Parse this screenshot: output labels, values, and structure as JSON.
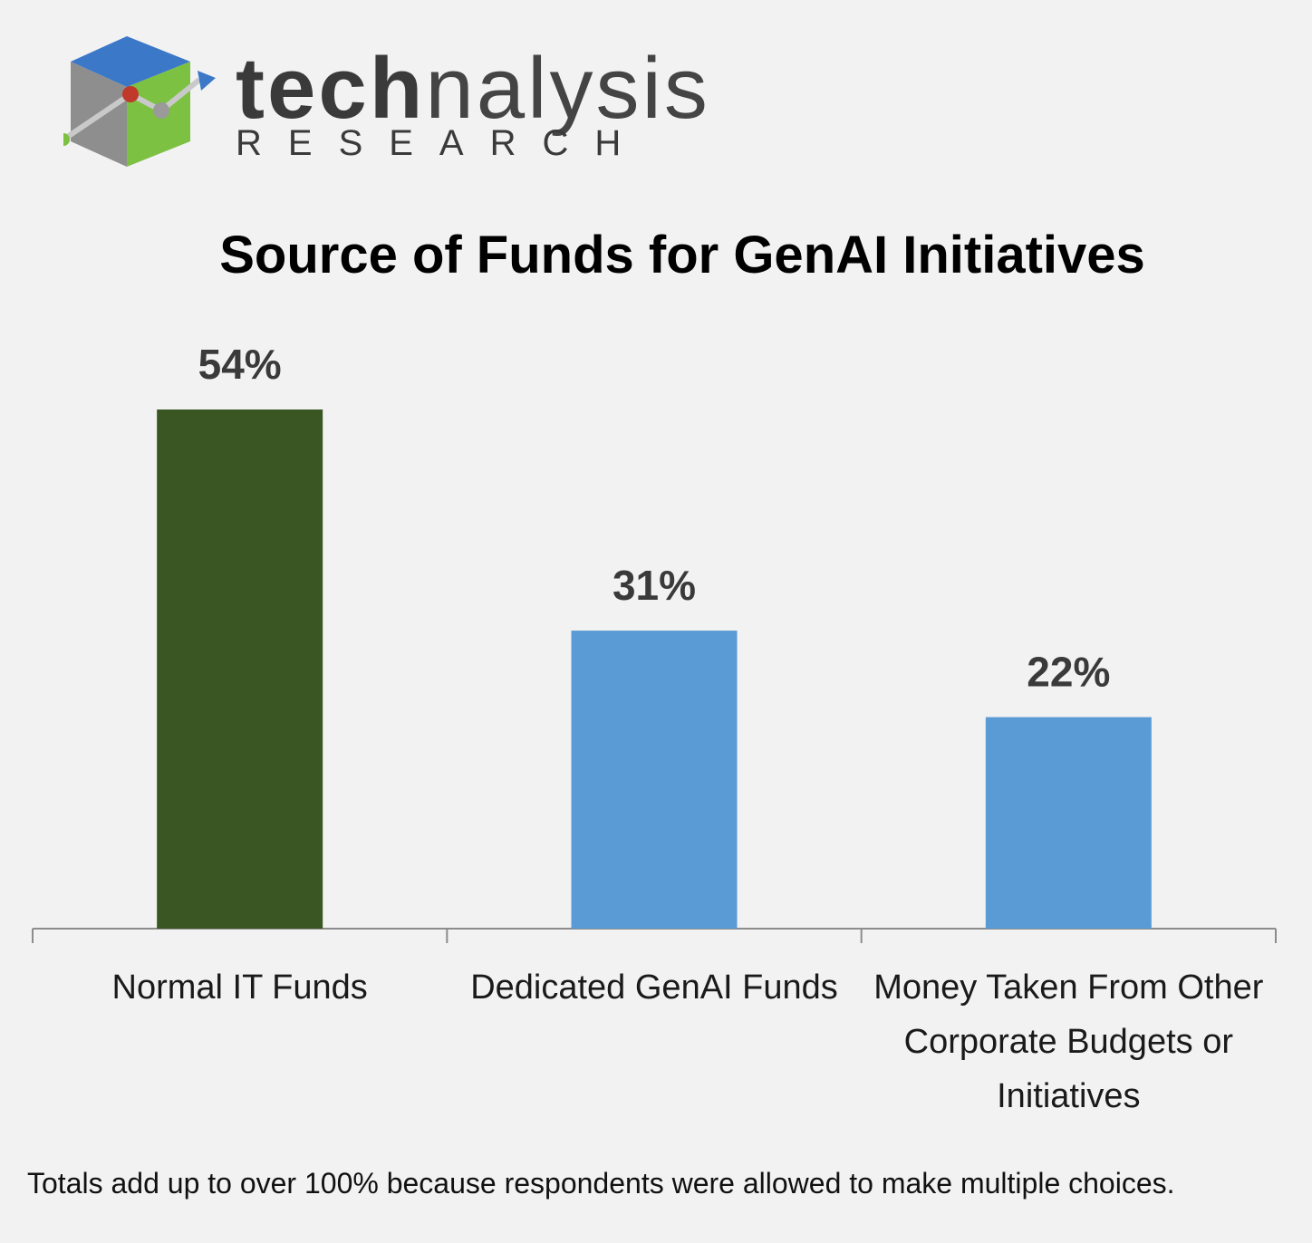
{
  "logo": {
    "word_bold": "tech",
    "word_regular": "nalysis",
    "subtitle": "RESEARCH",
    "icon": "cube-trend-logo-icon"
  },
  "chart_data": {
    "type": "bar",
    "title": "Source of Funds for GenAI Initiatives",
    "xlabel": "",
    "ylabel": "",
    "categories": [
      [
        "Normal IT Funds"
      ],
      [
        "Dedicated GenAI Funds"
      ],
      [
        "Money Taken From Other",
        "Corporate Budgets or",
        "Initiatives"
      ]
    ],
    "values": [
      54,
      31,
      22
    ],
    "value_labels": [
      "54%",
      "31%",
      "22%"
    ],
    "unit": "%",
    "ylim": [
      0,
      60
    ],
    "grid": false,
    "legend": "none",
    "colors": [
      "#3a5622",
      "#5b9bd5",
      "#5b9bd5"
    ]
  },
  "footnote": "Totals add up to over 100% because respondents were allowed to make multiple  choices."
}
